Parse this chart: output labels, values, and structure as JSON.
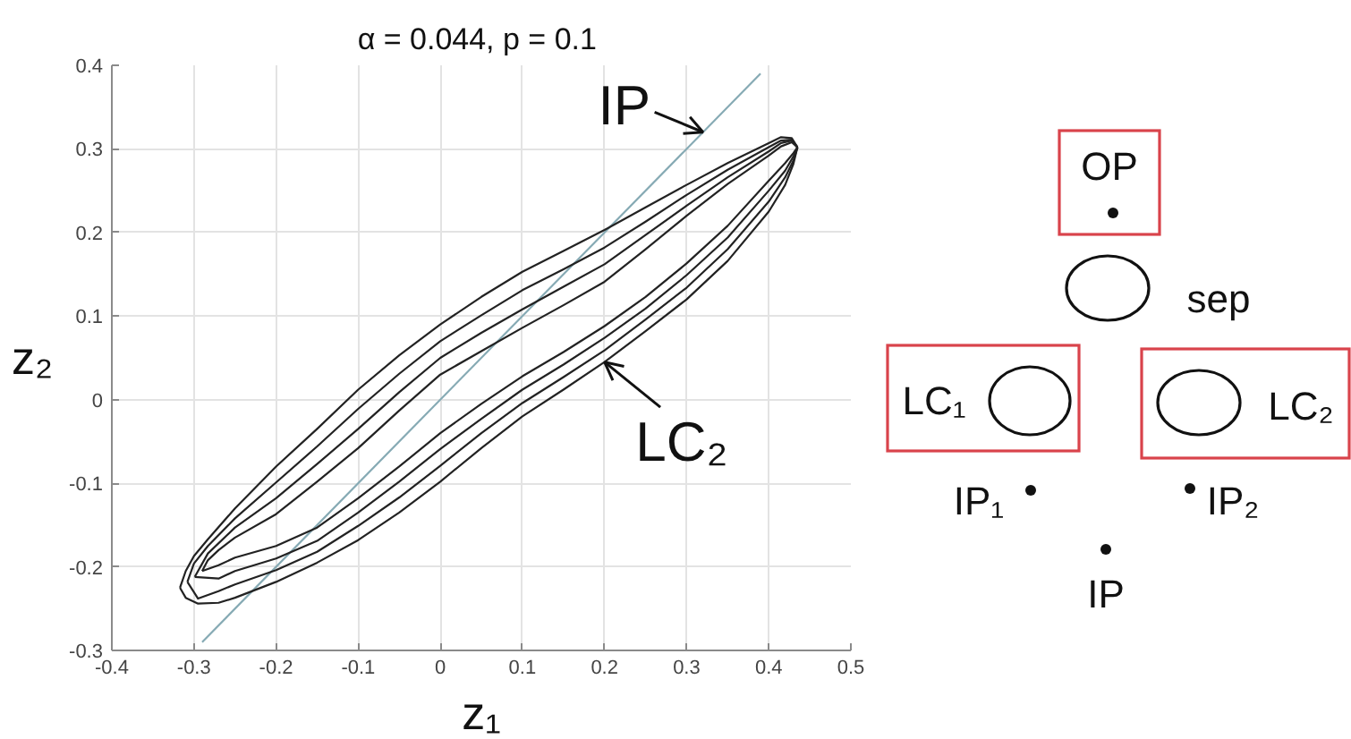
{
  "chart_data": [
    {
      "type": "line",
      "title": "α = 0.044,  p = 0.1",
      "xlabel": "z₁",
      "ylabel": "z₂",
      "xlim": [
        -0.4,
        0.5
      ],
      "ylim": [
        -0.3,
        0.4
      ],
      "xticks": [
        -0.4,
        -0.3,
        -0.2,
        -0.1,
        0,
        0.1,
        0.2,
        0.3,
        0.4,
        0.5
      ],
      "yticks": [
        -0.3,
        -0.2,
        -0.1,
        0,
        0.1,
        0.2,
        0.3,
        0.4
      ],
      "grid": true,
      "annotations": [
        {
          "text": "IP",
          "x": 0.32,
          "y": 0.32
        },
        {
          "text": "LC₂",
          "x": 0.2,
          "y": 0.045
        }
      ],
      "series": [
        {
          "color": "#86aab4",
          "x": [
            -0.29,
            0.39
          ],
          "values": [
            -0.29,
            0.39
          ]
        },
        {
          "color": "#222222",
          "x": [
            -0.317,
            -0.31,
            -0.3,
            -0.283,
            -0.25,
            -0.2,
            -0.15,
            -0.1,
            -0.05,
            0,
            0.05,
            0.1,
            0.15,
            0.2,
            0.25,
            0.3,
            0.35,
            0.4,
            0.415,
            0.428,
            0.435
          ],
          "values": [
            -0.225,
            -0.205,
            -0.187,
            -0.167,
            -0.13,
            -0.08,
            -0.035,
            0.012,
            0.053,
            0.09,
            0.123,
            0.153,
            0.178,
            0.203,
            0.23,
            0.257,
            0.283,
            0.307,
            0.314,
            0.313,
            0.302
          ]
        },
        {
          "color": "#222222",
          "x": [
            -0.317,
            -0.31,
            -0.295,
            -0.27,
            -0.25,
            -0.2,
            -0.15,
            -0.1,
            -0.05,
            0,
            0.05,
            0.1,
            0.15,
            0.2,
            0.25,
            0.3,
            0.35,
            0.4,
            0.42,
            0.43,
            0.435
          ],
          "values": [
            -0.225,
            -0.237,
            -0.244,
            -0.243,
            -0.237,
            -0.218,
            -0.195,
            -0.168,
            -0.135,
            -0.098,
            -0.058,
            -0.02,
            0.012,
            0.045,
            0.082,
            0.12,
            0.166,
            0.225,
            0.257,
            0.282,
            0.302
          ]
        },
        {
          "color": "#222222",
          "x": [
            -0.308,
            -0.3,
            -0.283,
            -0.25,
            -0.2,
            -0.15,
            -0.1,
            -0.05,
            0,
            0.05,
            0.1,
            0.15,
            0.2,
            0.25,
            0.3,
            0.35,
            0.4,
            0.415,
            0.428,
            0.435
          ],
          "values": [
            -0.218,
            -0.196,
            -0.175,
            -0.142,
            -0.099,
            -0.056,
            -0.011,
            0.031,
            0.07,
            0.101,
            0.131,
            0.156,
            0.182,
            0.213,
            0.245,
            0.275,
            0.302,
            0.31,
            0.311,
            0.302
          ]
        },
        {
          "color": "#222222",
          "x": [
            -0.308,
            -0.295,
            -0.27,
            -0.25,
            -0.2,
            -0.15,
            -0.1,
            -0.05,
            0,
            0.05,
            0.1,
            0.15,
            0.2,
            0.25,
            0.3,
            0.35,
            0.4,
            0.42,
            0.43,
            0.435
          ],
          "values": [
            -0.218,
            -0.238,
            -0.229,
            -0.221,
            -0.204,
            -0.182,
            -0.151,
            -0.117,
            -0.079,
            -0.04,
            -0.004,
            0.027,
            0.059,
            0.096,
            0.134,
            0.18,
            0.237,
            0.266,
            0.286,
            0.302
          ]
        },
        {
          "color": "#222222",
          "x": [
            -0.299,
            -0.283,
            -0.25,
            -0.2,
            -0.15,
            -0.1,
            -0.05,
            0,
            0.05,
            0.1,
            0.15,
            0.2,
            0.25,
            0.3,
            0.35,
            0.4,
            0.415,
            0.428,
            0.435
          ],
          "values": [
            -0.212,
            -0.184,
            -0.153,
            -0.118,
            -0.077,
            -0.035,
            0.009,
            0.05,
            0.08,
            0.108,
            0.135,
            0.162,
            0.197,
            0.232,
            0.266,
            0.297,
            0.307,
            0.31,
            0.302
          ]
        },
        {
          "color": "#222222",
          "x": [
            -0.299,
            -0.27,
            -0.25,
            -0.2,
            -0.15,
            -0.1,
            -0.05,
            0,
            0.05,
            0.1,
            0.15,
            0.2,
            0.25,
            0.3,
            0.35,
            0.4,
            0.42,
            0.43,
            0.435
          ],
          "values": [
            -0.212,
            -0.214,
            -0.205,
            -0.19,
            -0.169,
            -0.135,
            -0.098,
            -0.059,
            -0.023,
            0.012,
            0.042,
            0.074,
            0.109,
            0.149,
            0.194,
            0.25,
            0.274,
            0.291,
            0.302
          ]
        },
        {
          "color": "#222222",
          "x": [
            -0.29,
            -0.283,
            -0.27,
            -0.25,
            -0.2,
            -0.15,
            -0.1,
            -0.05,
            0,
            0.05,
            0.1,
            0.15,
            0.2,
            0.25,
            0.3,
            0.35,
            0.4,
            0.415,
            0.428,
            0.435
          ],
          "values": [
            -0.205,
            -0.192,
            -0.18,
            -0.165,
            -0.137,
            -0.098,
            -0.058,
            -0.013,
            0.03,
            0.058,
            0.086,
            0.113,
            0.141,
            0.18,
            0.22,
            0.258,
            0.292,
            0.303,
            0.308,
            0.302
          ]
        },
        {
          "color": "#222222",
          "x": [
            -0.29,
            -0.27,
            -0.25,
            -0.2,
            -0.15,
            -0.1,
            -0.05,
            0,
            0.05,
            0.1,
            0.15,
            0.2,
            0.25,
            0.3,
            0.35,
            0.4,
            0.42,
            0.43,
            0.435
          ],
          "values": [
            -0.205,
            -0.198,
            -0.189,
            -0.175,
            -0.153,
            -0.118,
            -0.08,
            -0.04,
            -0.005,
            0.028,
            0.057,
            0.088,
            0.123,
            0.163,
            0.208,
            0.262,
            0.283,
            0.295,
            0.302
          ]
        }
      ]
    },
    {
      "type": "other",
      "annotations": [
        "OP",
        "sep",
        "LC₁",
        "LC₂",
        "IP₁",
        "IP₂",
        "IP"
      ]
    }
  ]
}
